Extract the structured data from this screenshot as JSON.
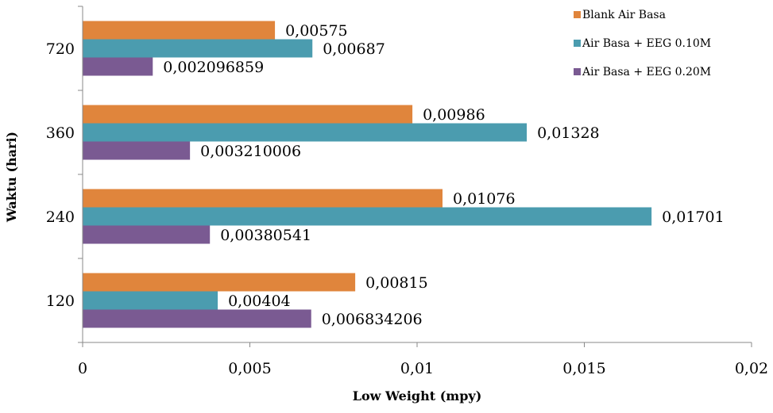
{
  "chart_data": {
    "type": "bar",
    "orientation": "horizontal",
    "title": "",
    "xlabel": "Low Weight (mpy)",
    "ylabel": "Waktu (hari)",
    "xlim": [
      0,
      0.02
    ],
    "x_ticks": [
      "0",
      "0,005",
      "0,01",
      "0,015",
      "0,02"
    ],
    "categories": [
      "120",
      "240",
      "360",
      "720"
    ],
    "series": [
      {
        "name": "Blank Air Basa",
        "color": "#E0853C",
        "values": [
          0.00815,
          0.01076,
          0.00986,
          0.00575
        ],
        "labels": [
          "0,00815",
          "0,01076",
          "0,00986",
          "0,00575"
        ]
      },
      {
        "name": "Air Basa + EEG 0.10M",
        "color": "#4B9CAF",
        "values": [
          0.00404,
          0.01701,
          0.01328,
          0.00687
        ],
        "labels": [
          "0,00404",
          "0,01701",
          "0,01328",
          "0,00687"
        ]
      },
      {
        "name": "Air Basa + EEG 0.20M",
        "color": "#7A5A92",
        "values": [
          0.006834206,
          0.00380541,
          0.003210006,
          0.002096859
        ],
        "labels": [
          "0,006834206",
          "0,00380541",
          "0,003210006",
          "0,002096859"
        ]
      }
    ],
    "grid": false,
    "legend_position": "top-right"
  }
}
